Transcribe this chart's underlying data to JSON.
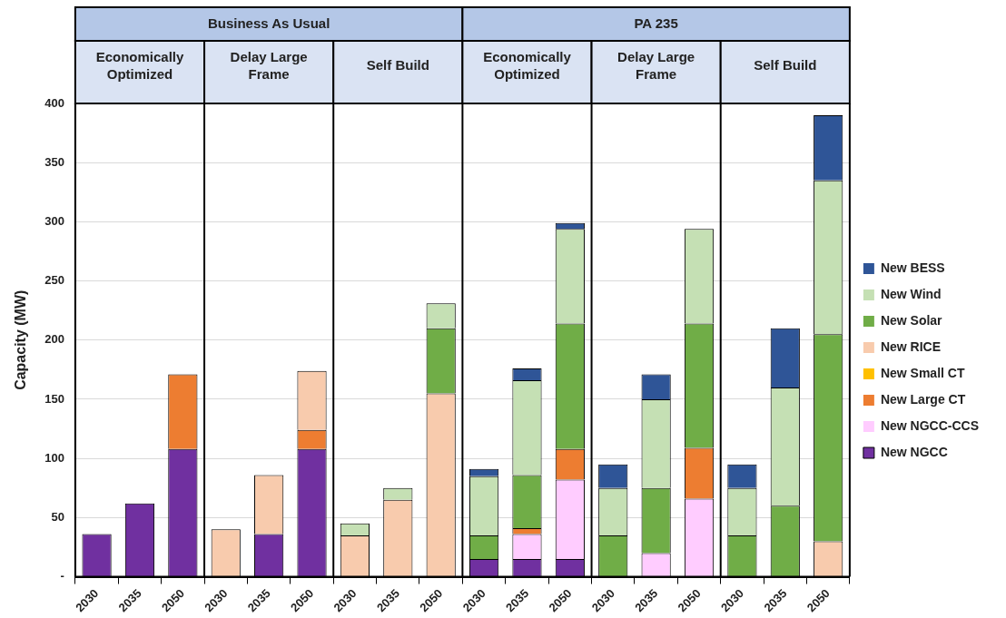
{
  "chart_data": {
    "type": "bar",
    "stacked": true,
    "ylabel": "Capacity (MW)",
    "categories": [
      "2030",
      "2035",
      "2050",
      "2030",
      "2035",
      "2050",
      "2030",
      "2035",
      "2050",
      "2030",
      "2035",
      "2050",
      "2030",
      "2035",
      "2050",
      "2030",
      "2035",
      "2050"
    ],
    "annotations": [
      "Business As Usual",
      "PA 235",
      "Economically Optimized",
      "Delay Large Frame",
      "Self Build",
      "Economically Optimized",
      "Delay Large Frame",
      "Self Build"
    ],
    "series": [
      {
        "name": "New NGCC",
        "color": "#7030a0",
        "values": [
          36,
          62,
          108,
          0,
          36,
          108,
          0,
          0,
          0,
          15,
          15,
          15,
          0,
          0,
          0,
          0,
          0,
          0
        ]
      },
      {
        "name": "New NGCC-CCS",
        "color": "#ffccff",
        "values": [
          0,
          0,
          0,
          0,
          0,
          0,
          0,
          0,
          0,
          0,
          21,
          67,
          0,
          20,
          66,
          0,
          0,
          0
        ]
      },
      {
        "name": "New Large CT",
        "color": "#ed7d31",
        "values": [
          0,
          0,
          63,
          0,
          0,
          16,
          0,
          0,
          0,
          0,
          5,
          26,
          0,
          0,
          43,
          0,
          0,
          0
        ]
      },
      {
        "name": "New Small CT",
        "color": "#ffc000",
        "values": [
          0,
          0,
          0,
          0,
          0,
          0,
          0,
          0,
          0,
          0,
          0,
          0,
          0,
          0,
          0,
          0,
          0,
          0
        ]
      },
      {
        "name": "New RICE",
        "color": "#f8cbad",
        "values": [
          0,
          0,
          0,
          40,
          50,
          50,
          35,
          65,
          155,
          0,
          0,
          0,
          0,
          0,
          0,
          0,
          0,
          30
        ]
      },
      {
        "name": "New Solar",
        "color": "#70ad47",
        "values": [
          0,
          0,
          0,
          0,
          0,
          0,
          0,
          0,
          55,
          20,
          45,
          106,
          35,
          55,
          105,
          35,
          60,
          175
        ]
      },
      {
        "name": "New Wind",
        "color": "#c5e0b4",
        "values": [
          0,
          0,
          0,
          0,
          0,
          0,
          10,
          10,
          21,
          50,
          80,
          80,
          40,
          75,
          80,
          40,
          100,
          130
        ]
      },
      {
        "name": "New BESS",
        "color": "#2f5597",
        "values": [
          0,
          0,
          0,
          0,
          0,
          0,
          0,
          0,
          0,
          6,
          10,
          5,
          20,
          21,
          0,
          20,
          50,
          55
        ]
      }
    ],
    "ylim": [
      0,
      400
    ],
    "yticks": [
      {
        "value": 0,
        "label": "-"
      },
      50,
      100,
      150,
      200,
      250,
      300,
      350,
      400
    ],
    "grid": "y",
    "legend": "right"
  }
}
